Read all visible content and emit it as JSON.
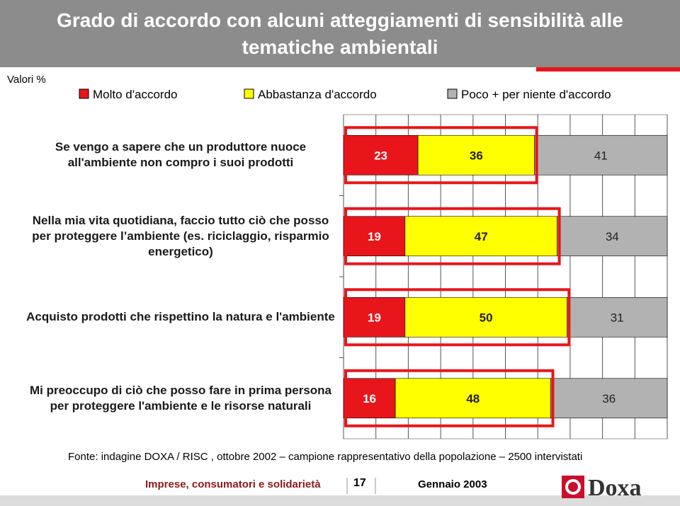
{
  "slide": {
    "title": "Grado di accordo con alcuni atteggiamenti di sensibilità alle tematiche ambientali",
    "units_note": "Valori %",
    "source": "Fonte: indagine DOXA / RISC , ottobre 2002 – campione rappresentativo della popolazione – 2500 intervistati",
    "footer": {
      "left": "Imprese, consumatori e solidarietà",
      "page": "17",
      "date": "Gennaio 2003",
      "logo": "Doxa"
    }
  },
  "chart_data": {
    "type": "stacked_bar",
    "orientation": "horizontal",
    "categories": [
      "Se vengo a sapere che un produttore nuoce all'ambiente non compro i suoi prodotti",
      "Nella mia vita quotidiana, faccio tutto ciò che posso per proteggere l’ambiente (es. riciclaggio, risparmio energetico)",
      "Acquisto prodotti che rispettino la natura e l'ambiente",
      "Mi preoccupo di ciò che posso fare in prima persona per proteggere l'ambiente e le risorse naturali"
    ],
    "series": [
      {
        "name": "Molto d'accordo",
        "color": "#e8161b",
        "values": [
          23,
          19,
          19,
          16
        ]
      },
      {
        "name": "Abbastanza d'accordo",
        "color": "#ffff00",
        "values": [
          36,
          47,
          50,
          48
        ]
      },
      {
        "name": "Poco + per niente d'accordo",
        "color": "#b2b2b2",
        "values": [
          41,
          34,
          31,
          36
        ]
      }
    ],
    "xlim": [
      0,
      100
    ],
    "xticks": [
      0,
      10,
      20,
      30,
      40,
      50,
      60,
      70,
      80,
      90,
      100
    ],
    "grid": true,
    "legend": "top"
  }
}
